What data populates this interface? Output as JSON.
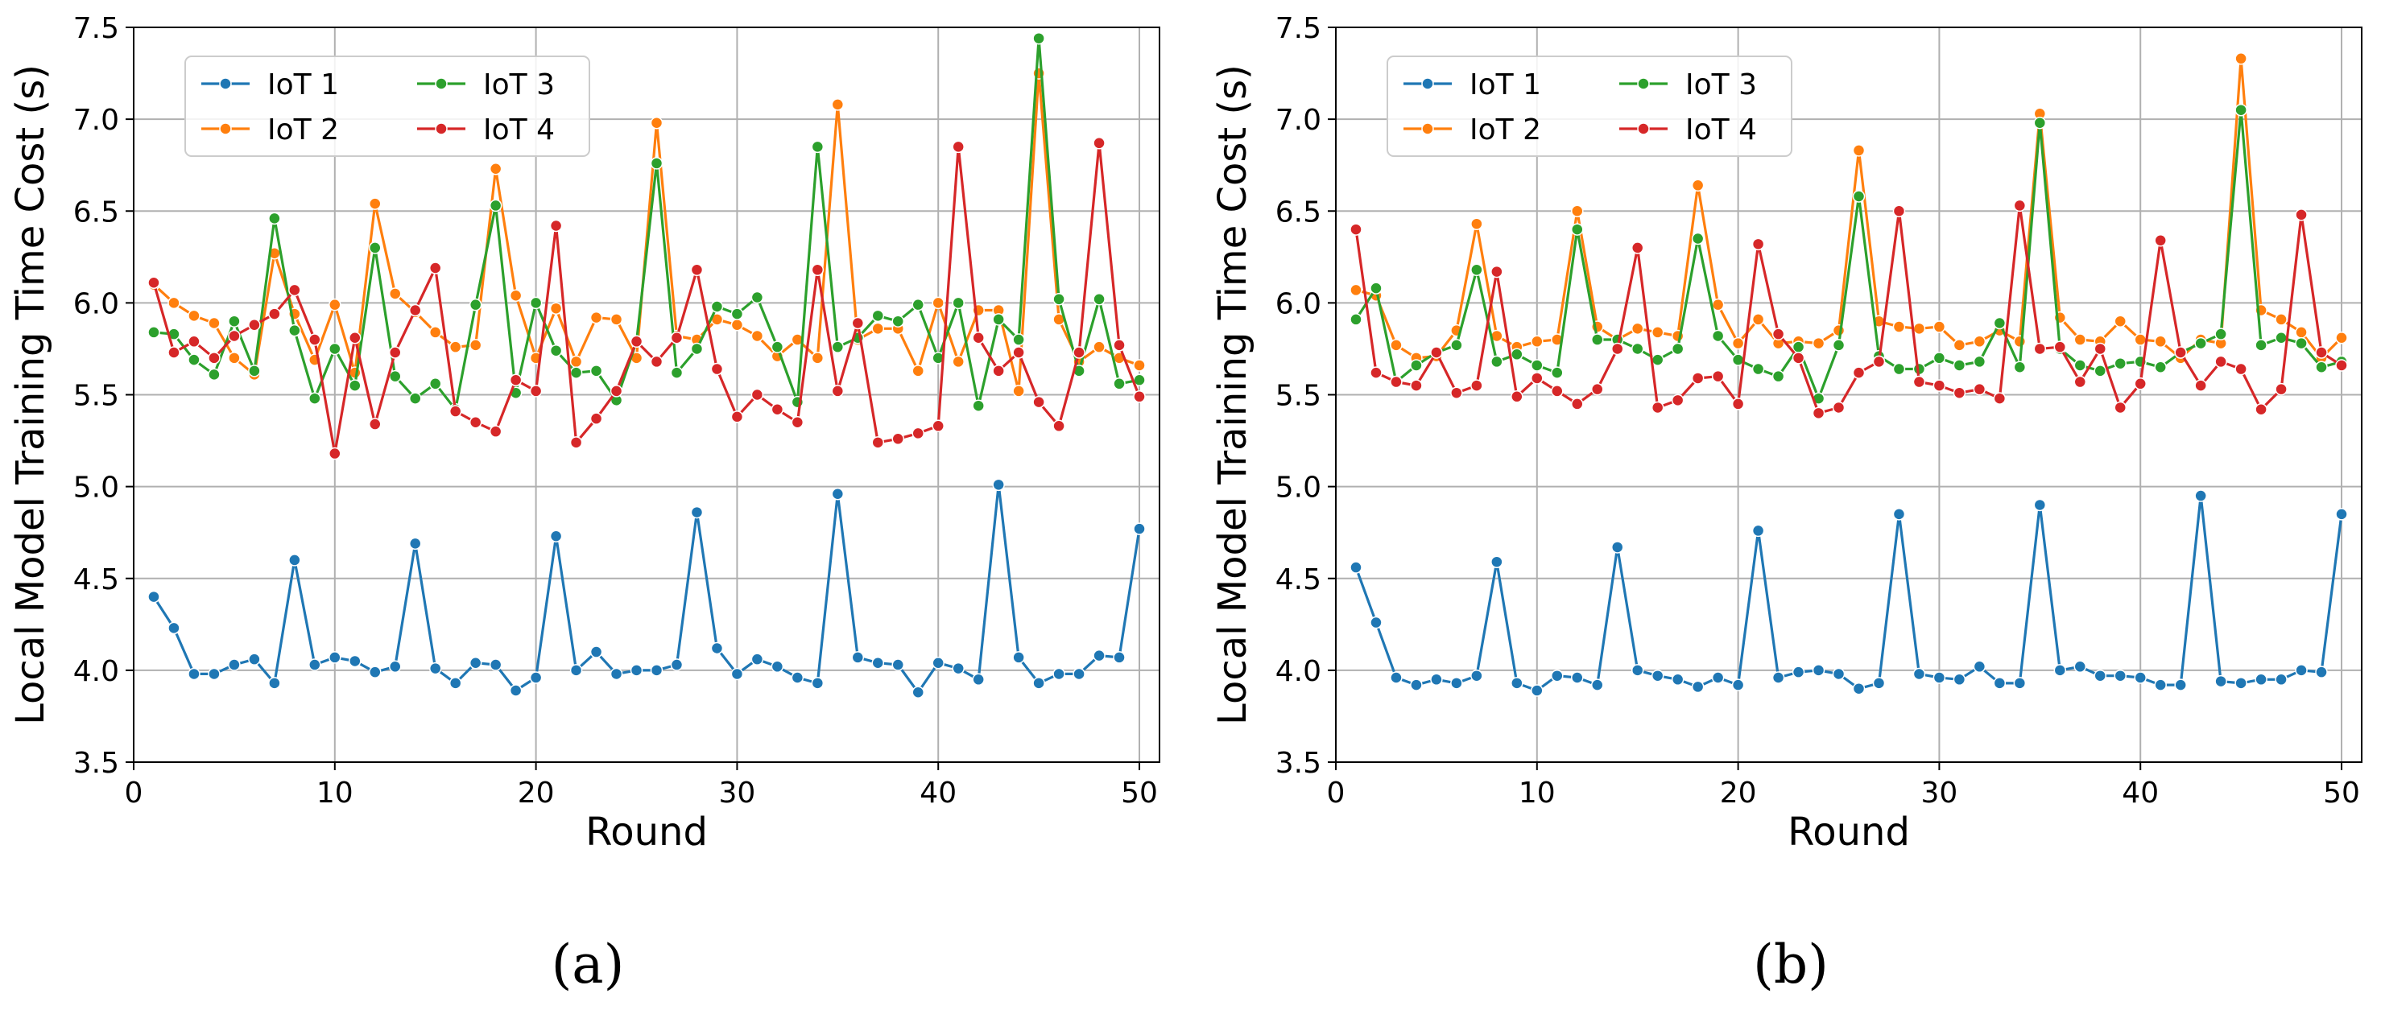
{
  "panel_labels": [
    "(a)",
    "(b)"
  ],
  "colors": {
    "IoT 1": "#1f77b4",
    "IoT 2": "#ff7f0e",
    "IoT 3": "#2ca02c",
    "IoT 4": "#d62728",
    "grid": "#b0b0b0"
  },
  "chart_data": [
    {
      "type": "line",
      "panel": "(a)",
      "xlabel": "Round",
      "ylabel": "Local Model Training Time Cost (s)",
      "xlim": [
        0,
        51
      ],
      "ylim": [
        3.5,
        7.5
      ],
      "xticks": [
        0,
        10,
        20,
        30,
        40,
        50
      ],
      "yticks": [
        3.5,
        4.0,
        4.5,
        5.0,
        5.5,
        6.0,
        6.5,
        7.0,
        7.5
      ],
      "ytick_labels": [
        "3.5",
        "4.0",
        "4.5",
        "5.0",
        "5.5",
        "6.0",
        "6.5",
        "7.0",
        "7.5"
      ],
      "grid": true,
      "legend": {
        "position": "top-left",
        "ncol": 2,
        "order": [
          "IoT 1",
          "IoT 3",
          "IoT 2",
          "IoT 4"
        ]
      },
      "x": [
        1,
        2,
        3,
        4,
        5,
        6,
        7,
        8,
        9,
        10,
        11,
        12,
        13,
        14,
        15,
        16,
        17,
        18,
        19,
        20,
        21,
        22,
        23,
        24,
        25,
        26,
        27,
        28,
        29,
        30,
        31,
        32,
        33,
        34,
        35,
        36,
        37,
        38,
        39,
        40,
        41,
        42,
        43,
        44,
        45,
        46,
        47,
        48,
        49,
        50
      ],
      "series": [
        {
          "name": "IoT 1",
          "values": [
            4.4,
            4.23,
            3.98,
            3.98,
            4.03,
            4.06,
            3.93,
            4.6,
            4.03,
            4.07,
            4.05,
            3.99,
            4.02,
            4.69,
            4.01,
            3.93,
            4.04,
            4.03,
            3.89,
            3.96,
            4.73,
            4.0,
            4.1,
            3.98,
            4.0,
            4.0,
            4.03,
            4.86,
            4.12,
            3.98,
            4.06,
            4.02,
            3.96,
            3.93,
            4.96,
            4.07,
            4.04,
            4.03,
            3.88,
            4.04,
            4.01,
            3.95,
            5.01,
            4.07,
            3.93,
            3.98,
            3.98,
            4.08,
            4.07,
            4.77
          ]
        },
        {
          "name": "IoT 2",
          "values": [
            6.1,
            6.0,
            5.93,
            5.89,
            5.7,
            5.61,
            6.27,
            5.94,
            5.69,
            5.99,
            5.62,
            6.54,
            6.05,
            5.95,
            5.84,
            5.76,
            5.77,
            6.73,
            6.04,
            5.7,
            5.97,
            5.68,
            5.92,
            5.91,
            5.7,
            6.98,
            5.82,
            5.8,
            5.91,
            5.88,
            5.82,
            5.71,
            5.8,
            5.7,
            7.08,
            5.8,
            5.86,
            5.86,
            5.63,
            6.0,
            5.68,
            5.96,
            5.96,
            5.52,
            7.25,
            5.91,
            5.68,
            5.76,
            5.7,
            5.66
          ]
        },
        {
          "name": "IoT 3",
          "values": [
            5.84,
            5.83,
            5.69,
            5.61,
            5.9,
            5.63,
            6.46,
            5.85,
            5.48,
            5.75,
            5.55,
            6.3,
            5.6,
            5.48,
            5.56,
            5.42,
            5.99,
            6.53,
            5.51,
            6.0,
            5.74,
            5.62,
            5.63,
            5.47,
            5.79,
            6.76,
            5.62,
            5.75,
            5.98,
            5.94,
            6.03,
            5.76,
            5.46,
            6.85,
            5.76,
            5.81,
            5.93,
            5.9,
            5.99,
            5.7,
            6.0,
            5.44,
            5.91,
            5.8,
            7.44,
            6.02,
            5.63,
            6.02,
            5.56,
            5.58
          ]
        },
        {
          "name": "IoT 4",
          "values": [
            6.11,
            5.73,
            5.79,
            5.7,
            5.82,
            5.88,
            5.94,
            6.07,
            5.8,
            5.18,
            5.81,
            5.34,
            5.73,
            5.96,
            6.19,
            5.41,
            5.35,
            5.3,
            5.58,
            5.52,
            6.42,
            5.24,
            5.37,
            5.52,
            5.79,
            5.68,
            5.81,
            6.18,
            5.64,
            5.38,
            5.5,
            5.42,
            5.35,
            6.18,
            5.52,
            5.89,
            5.24,
            5.26,
            5.29,
            5.33,
            6.85,
            5.81,
            5.63,
            5.73,
            5.46,
            5.33,
            5.73,
            6.87,
            5.77,
            5.49
          ]
        }
      ]
    },
    {
      "type": "line",
      "panel": "(b)",
      "xlabel": "Round",
      "ylabel": "Local Model Training Time Cost (s)",
      "xlim": [
        0,
        51
      ],
      "ylim": [
        3.5,
        7.5
      ],
      "xticks": [
        0,
        10,
        20,
        30,
        40,
        50
      ],
      "yticks": [
        3.5,
        4.0,
        4.5,
        5.0,
        5.5,
        6.0,
        6.5,
        7.0,
        7.5
      ],
      "ytick_labels": [
        "3.5",
        "4.0",
        "4.5",
        "5.0",
        "5.5",
        "6.0",
        "6.5",
        "7.0",
        "7.5"
      ],
      "grid": true,
      "legend": {
        "position": "top-left",
        "ncol": 2,
        "order": [
          "IoT 1",
          "IoT 3",
          "IoT 2",
          "IoT 4"
        ]
      },
      "x": [
        1,
        2,
        3,
        4,
        5,
        6,
        7,
        8,
        9,
        10,
        11,
        12,
        13,
        14,
        15,
        16,
        17,
        18,
        19,
        20,
        21,
        22,
        23,
        24,
        25,
        26,
        27,
        28,
        29,
        30,
        31,
        32,
        33,
        34,
        35,
        36,
        37,
        38,
        39,
        40,
        41,
        42,
        43,
        44,
        45,
        46,
        47,
        48,
        49,
        50
      ],
      "series": [
        {
          "name": "IoT 1",
          "values": [
            4.56,
            4.26,
            3.96,
            3.92,
            3.95,
            3.93,
            3.97,
            4.59,
            3.93,
            3.89,
            3.97,
            3.96,
            3.92,
            4.67,
            4.0,
            3.97,
            3.95,
            3.91,
            3.96,
            3.92,
            4.76,
            3.96,
            3.99,
            4.0,
            3.98,
            3.9,
            3.93,
            4.85,
            3.98,
            3.96,
            3.95,
            4.02,
            3.93,
            3.93,
            4.9,
            4.0,
            4.02,
            3.97,
            3.97,
            3.96,
            3.92,
            3.92,
            4.95,
            3.94,
            3.93,
            3.95,
            3.95,
            4.0,
            3.99,
            4.85
          ]
        },
        {
          "name": "IoT 2",
          "values": [
            6.07,
            6.04,
            5.77,
            5.7,
            5.71,
            5.85,
            6.43,
            5.82,
            5.76,
            5.79,
            5.8,
            6.5,
            5.87,
            5.8,
            5.86,
            5.84,
            5.82,
            6.64,
            5.99,
            5.78,
            5.91,
            5.78,
            5.79,
            5.78,
            5.85,
            6.83,
            5.9,
            5.87,
            5.86,
            5.87,
            5.77,
            5.79,
            5.85,
            5.79,
            7.03,
            5.92,
            5.8,
            5.79,
            5.9,
            5.8,
            5.79,
            5.7,
            5.8,
            5.78,
            7.33,
            5.96,
            5.91,
            5.84,
            5.7,
            5.81
          ]
        },
        {
          "name": "IoT 3",
          "values": [
            5.91,
            6.08,
            5.57,
            5.66,
            5.73,
            5.77,
            6.18,
            5.68,
            5.72,
            5.66,
            5.62,
            6.4,
            5.8,
            5.8,
            5.75,
            5.69,
            5.75,
            6.35,
            5.82,
            5.69,
            5.64,
            5.6,
            5.76,
            5.48,
            5.77,
            6.58,
            5.71,
            5.64,
            5.64,
            5.7,
            5.66,
            5.68,
            5.89,
            5.65,
            6.98,
            5.75,
            5.66,
            5.63,
            5.67,
            5.68,
            5.65,
            5.73,
            5.78,
            5.83,
            7.05,
            5.77,
            5.81,
            5.78,
            5.65,
            5.68
          ]
        },
        {
          "name": "IoT 4",
          "values": [
            6.4,
            5.62,
            5.57,
            5.55,
            5.73,
            5.51,
            5.55,
            6.17,
            5.49,
            5.59,
            5.52,
            5.45,
            5.53,
            5.75,
            6.3,
            5.43,
            5.47,
            5.59,
            5.6,
            5.45,
            6.32,
            5.83,
            5.7,
            5.4,
            5.43,
            5.62,
            5.68,
            6.5,
            5.57,
            5.55,
            5.51,
            5.53,
            5.48,
            6.53,
            5.75,
            5.76,
            5.57,
            5.75,
            5.43,
            5.56,
            6.34,
            5.73,
            5.55,
            5.68,
            5.64,
            5.42,
            5.53,
            6.48,
            5.73,
            5.66
          ]
        }
      ]
    }
  ]
}
